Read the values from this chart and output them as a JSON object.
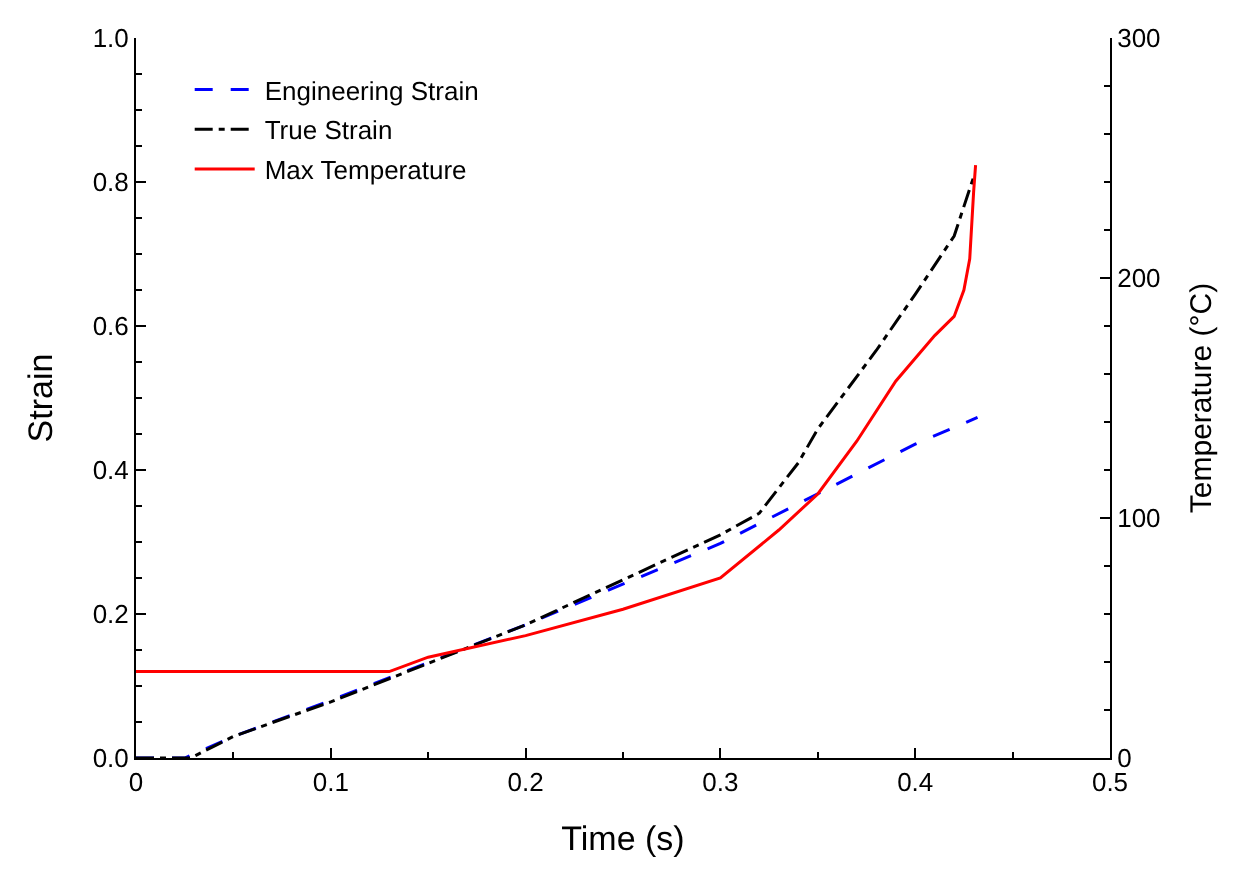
{
  "chart_data": {
    "type": "line",
    "xlabel": "Time (s)",
    "ylabel": "Strain",
    "y2label": "Temperature (°C)",
    "xlim": [
      0,
      0.5
    ],
    "xticks": [
      0,
      0.1,
      0.2,
      0.3,
      0.4,
      0.5
    ],
    "ylim": [
      0,
      1.0
    ],
    "yticks": [
      {
        "value": 0,
        "label": "0.0"
      },
      0.2,
      0.4,
      0.6,
      0.8,
      {
        "value": 1,
        "label": "1.0"
      }
    ],
    "y2lim": [
      0,
      300
    ],
    "y2ticks": [
      0,
      100,
      200,
      300
    ],
    "legend": "top left",
    "series": [
      {
        "name": "Engineering Strain",
        "color": "#0000ff",
        "line_style": "dashed",
        "x": [
          0,
          0.025,
          0.05,
          0.1,
          0.2,
          0.3,
          0.4,
          0.432
        ],
        "values": [
          0,
          0,
          0.03,
          0.08,
          0.185,
          0.298,
          0.436,
          0.473
        ]
      },
      {
        "name": "True Strain",
        "color": "#000000",
        "line_style": "dashdot",
        "x": [
          0,
          0.028,
          0.05,
          0.1,
          0.2,
          0.3,
          0.32,
          0.34,
          0.35,
          0.38,
          0.4,
          0.42,
          0.43
        ],
        "values": [
          0,
          0,
          0.03,
          0.078,
          0.185,
          0.31,
          0.34,
          0.41,
          0.457,
          0.566,
          0.644,
          0.725,
          0.807
        ]
      },
      {
        "name": "Max Temperature",
        "color": "#ff0000",
        "line_style": "solid",
        "axis": "y2",
        "x": [
          0,
          0.13,
          0.15,
          0.2,
          0.25,
          0.3,
          0.33,
          0.35,
          0.37,
          0.39,
          0.41,
          0.42,
          0.425,
          0.428,
          0.43,
          0.431
        ],
        "values": [
          36,
          36,
          42,
          51,
          62,
          75,
          95,
          110,
          132,
          157,
          176,
          184,
          195,
          208,
          236,
          247
        ]
      }
    ]
  }
}
